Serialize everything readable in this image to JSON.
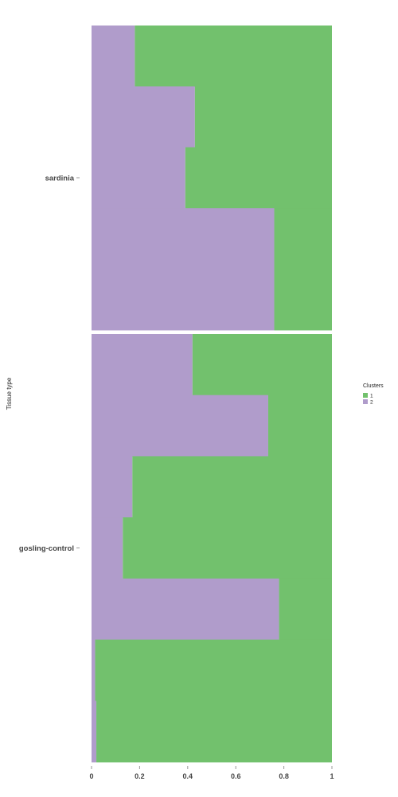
{
  "chart_data": {
    "type": "bar",
    "orientation": "horizontal",
    "stacked": true,
    "ylabel": "Tissue type",
    "xlim": [
      0,
      1
    ],
    "x_ticks": [
      "0",
      "0.2",
      "0.4",
      "0.6",
      "0.8",
      "1"
    ],
    "legend": {
      "title": "Clusters",
      "position": "right"
    },
    "colors": {
      "1": "#72c16d",
      "2": "#b09ccb"
    },
    "panels": [
      {
        "group": "sardinia",
        "samples": [
          {
            "cluster_2": 0.18,
            "cluster_1": 0.82
          },
          {
            "cluster_2": 0.43,
            "cluster_1": 0.57
          },
          {
            "cluster_2": 0.39,
            "cluster_1": 0.61
          },
          {
            "cluster_2": 0.76,
            "cluster_1": 0.24
          },
          {
            "cluster_2": 0.76,
            "cluster_1": 0.24
          }
        ]
      },
      {
        "group": "gosling-control",
        "samples": [
          {
            "cluster_2": 0.42,
            "cluster_1": 0.58
          },
          {
            "cluster_2": 0.735,
            "cluster_1": 0.265
          },
          {
            "cluster_2": 0.17,
            "cluster_1": 0.83
          },
          {
            "cluster_2": 0.13,
            "cluster_1": 0.87
          },
          {
            "cluster_2": 0.78,
            "cluster_1": 0.22
          },
          {
            "cluster_2": 0.015,
            "cluster_1": 0.985
          },
          {
            "cluster_2": 0.02,
            "cluster_1": 0.98
          }
        ]
      }
    ]
  }
}
